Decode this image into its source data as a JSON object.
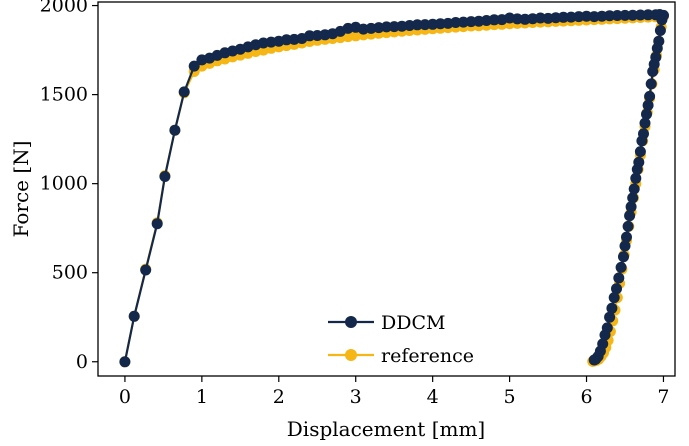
{
  "chart_data": {
    "type": "line",
    "title": "",
    "xlabel": "Displacement [mm]",
    "ylabel": "Force [N]",
    "xlim": [
      -0.35,
      7.15
    ],
    "ylim": [
      -80,
      2020
    ],
    "xticks": [
      0,
      1,
      2,
      3,
      4,
      5,
      6,
      7
    ],
    "yticks": [
      0,
      500,
      1000,
      1500,
      2000
    ],
    "grid": false,
    "legend_position": "lower-center",
    "series": [
      {
        "name": "DDCM",
        "color": "#14284b",
        "x": [
          0,
          0.12,
          0.27,
          0.42,
          0.52,
          0.65,
          0.77,
          0.9,
          1.0,
          1.1,
          1.2,
          1.3,
          1.4,
          1.5,
          1.6,
          1.7,
          1.8,
          1.9,
          2.0,
          2.1,
          2.2,
          2.3,
          2.4,
          2.5,
          2.6,
          2.7,
          2.8,
          2.9,
          3.0,
          3.1,
          3.2,
          3.3,
          3.4,
          3.5,
          3.6,
          3.7,
          3.8,
          3.9,
          4.0,
          4.1,
          4.2,
          4.3,
          4.4,
          4.5,
          4.6,
          4.7,
          4.8,
          4.9,
          5.0,
          5.1,
          5.2,
          5.3,
          5.4,
          5.5,
          5.6,
          5.7,
          5.8,
          5.9,
          6.0,
          6.1,
          6.2,
          6.3,
          6.4,
          6.5,
          6.6,
          6.7,
          6.8,
          6.9,
          6.95,
          7.0,
          6.98,
          6.96,
          6.94,
          6.92,
          6.9,
          6.88,
          6.86,
          6.84,
          6.82,
          6.8,
          6.78,
          6.76,
          6.74,
          6.72,
          6.7,
          6.68,
          6.66,
          6.64,
          6.62,
          6.6,
          6.58,
          6.56,
          6.54,
          6.52,
          6.5,
          6.48,
          6.45,
          6.42,
          6.39,
          6.36,
          6.33,
          6.3,
          6.27,
          6.24,
          6.21,
          6.18,
          6.15,
          6.12,
          6.1
        ],
        "y": [
          0,
          255,
          515,
          775,
          1040,
          1300,
          1515,
          1660,
          1695,
          1705,
          1720,
          1735,
          1745,
          1755,
          1768,
          1780,
          1790,
          1795,
          1800,
          1808,
          1810,
          1815,
          1830,
          1832,
          1836,
          1842,
          1855,
          1872,
          1878,
          1868,
          1872,
          1876,
          1880,
          1882,
          1884,
          1888,
          1892,
          1893,
          1895,
          1898,
          1900,
          1905,
          1907,
          1910,
          1912,
          1916,
          1920,
          1921,
          1930,
          1925,
          1923,
          1926,
          1930,
          1928,
          1932,
          1934,
          1935,
          1938,
          1940,
          1938,
          1940,
          1943,
          1944,
          1945,
          1946,
          1947,
          1948,
          1948,
          1950,
          1945,
          1920,
          1860,
          1800,
          1760,
          1710,
          1670,
          1630,
          1560,
          1490,
          1440,
          1390,
          1340,
          1280,
          1240,
          1180,
          1120,
          1080,
          1030,
          970,
          920,
          870,
          820,
          760,
          700,
          650,
          590,
          530,
          470,
          410,
          360,
          300,
          250,
          190,
          150,
          100,
          60,
          30,
          15,
          10
        ]
      },
      {
        "name": "reference",
        "color": "#f5b616",
        "x": [
          0,
          0.12,
          0.27,
          0.42,
          0.52,
          0.65,
          0.77,
          0.9,
          1.0,
          1.1,
          1.2,
          1.3,
          1.4,
          1.5,
          1.6,
          1.7,
          1.8,
          1.9,
          2.0,
          2.1,
          2.2,
          2.3,
          2.4,
          2.5,
          2.6,
          2.7,
          2.8,
          2.9,
          3.0,
          3.1,
          3.2,
          3.3,
          3.4,
          3.5,
          3.6,
          3.7,
          3.8,
          3.9,
          4.0,
          4.1,
          4.2,
          4.3,
          4.4,
          4.5,
          4.6,
          4.7,
          4.8,
          4.9,
          5.0,
          5.1,
          5.2,
          5.3,
          5.4,
          5.5,
          5.6,
          5.7,
          5.8,
          5.9,
          6.0,
          6.1,
          6.2,
          6.3,
          6.4,
          6.5,
          6.6,
          6.7,
          6.8,
          6.9,
          6.95,
          7.0,
          6.97,
          6.94,
          6.91,
          6.88,
          6.85,
          6.82,
          6.79,
          6.76,
          6.73,
          6.7,
          6.67,
          6.64,
          6.61,
          6.58,
          6.55,
          6.52,
          6.49,
          6.46,
          6.43,
          6.4,
          6.37,
          6.34,
          6.31,
          6.28,
          6.25,
          6.22,
          6.19,
          6.16,
          6.13,
          6.1,
          6.08
        ],
        "y": [
          0,
          255,
          520,
          780,
          1045,
          1300,
          1510,
          1630,
          1660,
          1675,
          1690,
          1700,
          1712,
          1722,
          1732,
          1742,
          1750,
          1760,
          1768,
          1775,
          1782,
          1790,
          1798,
          1805,
          1810,
          1815,
          1820,
          1826,
          1830,
          1835,
          1840,
          1844,
          1848,
          1852,
          1856,
          1860,
          1863,
          1866,
          1870,
          1873,
          1876,
          1879,
          1882,
          1885,
          1887,
          1890,
          1893,
          1895,
          1898,
          1900,
          1902,
          1905,
          1907,
          1909,
          1911,
          1913,
          1915,
          1917,
          1919,
          1921,
          1923,
          1925,
          1927,
          1929,
          1931,
          1933,
          1935,
          1937,
          1938,
          1940,
          1880,
          1800,
          1720,
          1640,
          1560,
          1480,
          1400,
          1320,
          1240,
          1160,
          1080,
          1000,
          920,
          840,
          760,
          680,
          600,
          520,
          440,
          360,
          290,
          230,
          170,
          120,
          80,
          50,
          30,
          15,
          8,
          4,
          2
        ]
      }
    ]
  }
}
